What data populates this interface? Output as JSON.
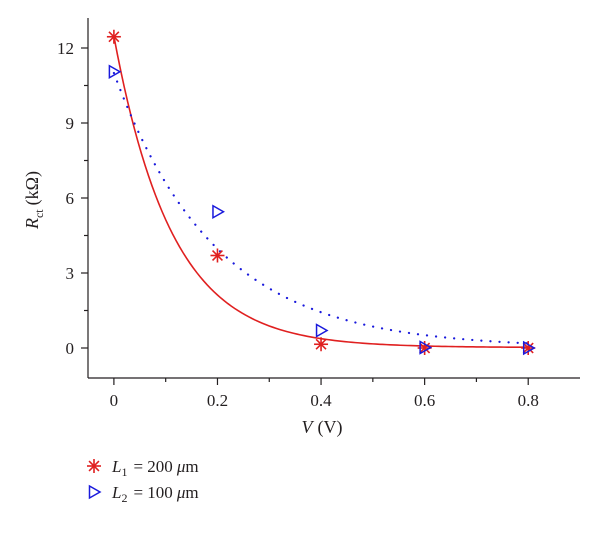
{
  "chart_data": {
    "type": "scatter",
    "title": "",
    "xlabel": {
      "var": "V",
      "unit": "(V)"
    },
    "ylabel": {
      "var": "R",
      "sub": "ct",
      "unit": "(kΩ)"
    },
    "xlim": [
      -0.05,
      0.9
    ],
    "ylim": [
      -1.2,
      13.2
    ],
    "x_ticks": [
      0,
      0.2,
      0.4,
      0.6,
      0.8
    ],
    "x_tick_labels": [
      "0",
      "0.2",
      "0.4",
      "0.6",
      "0.8"
    ],
    "y_ticks": [
      0,
      3,
      6,
      9,
      12
    ],
    "y_tick_labels": [
      "0",
      "3",
      "6",
      "9",
      "12"
    ],
    "grid": false,
    "legend_position": "bottom-left",
    "series": [
      {
        "name": "L1 = 200 μm",
        "legend": {
          "var": "L",
          "sub": "1",
          "eq": "= 200",
          "unit_mu": "μ",
          "unit": "m"
        },
        "marker": "asterisk",
        "color": "#e02020",
        "x": [
          0,
          0.2,
          0.4,
          0.6,
          0.8
        ],
        "y": [
          12.45,
          3.7,
          0.15,
          0.0,
          0.0
        ],
        "fit": {
          "style": "solid",
          "model": "exponential",
          "a": 12.45,
          "k": 8.9,
          "c": 0.02
        }
      },
      {
        "name": "L2 = 100 μm",
        "legend": {
          "var": "L",
          "sub": "2",
          "eq": "= 100",
          "unit_mu": "μ",
          "unit": "m"
        },
        "marker": "triangle-right",
        "color": "#1a1adc",
        "x": [
          0,
          0.2,
          0.4,
          0.6,
          0.8
        ],
        "y": [
          11.05,
          5.45,
          0.7,
          0.02,
          0.0
        ],
        "fit": {
          "style": "dotted",
          "model": "exponential",
          "a": 11.0,
          "k": 5.1,
          "c": 0.0
        }
      }
    ]
  }
}
